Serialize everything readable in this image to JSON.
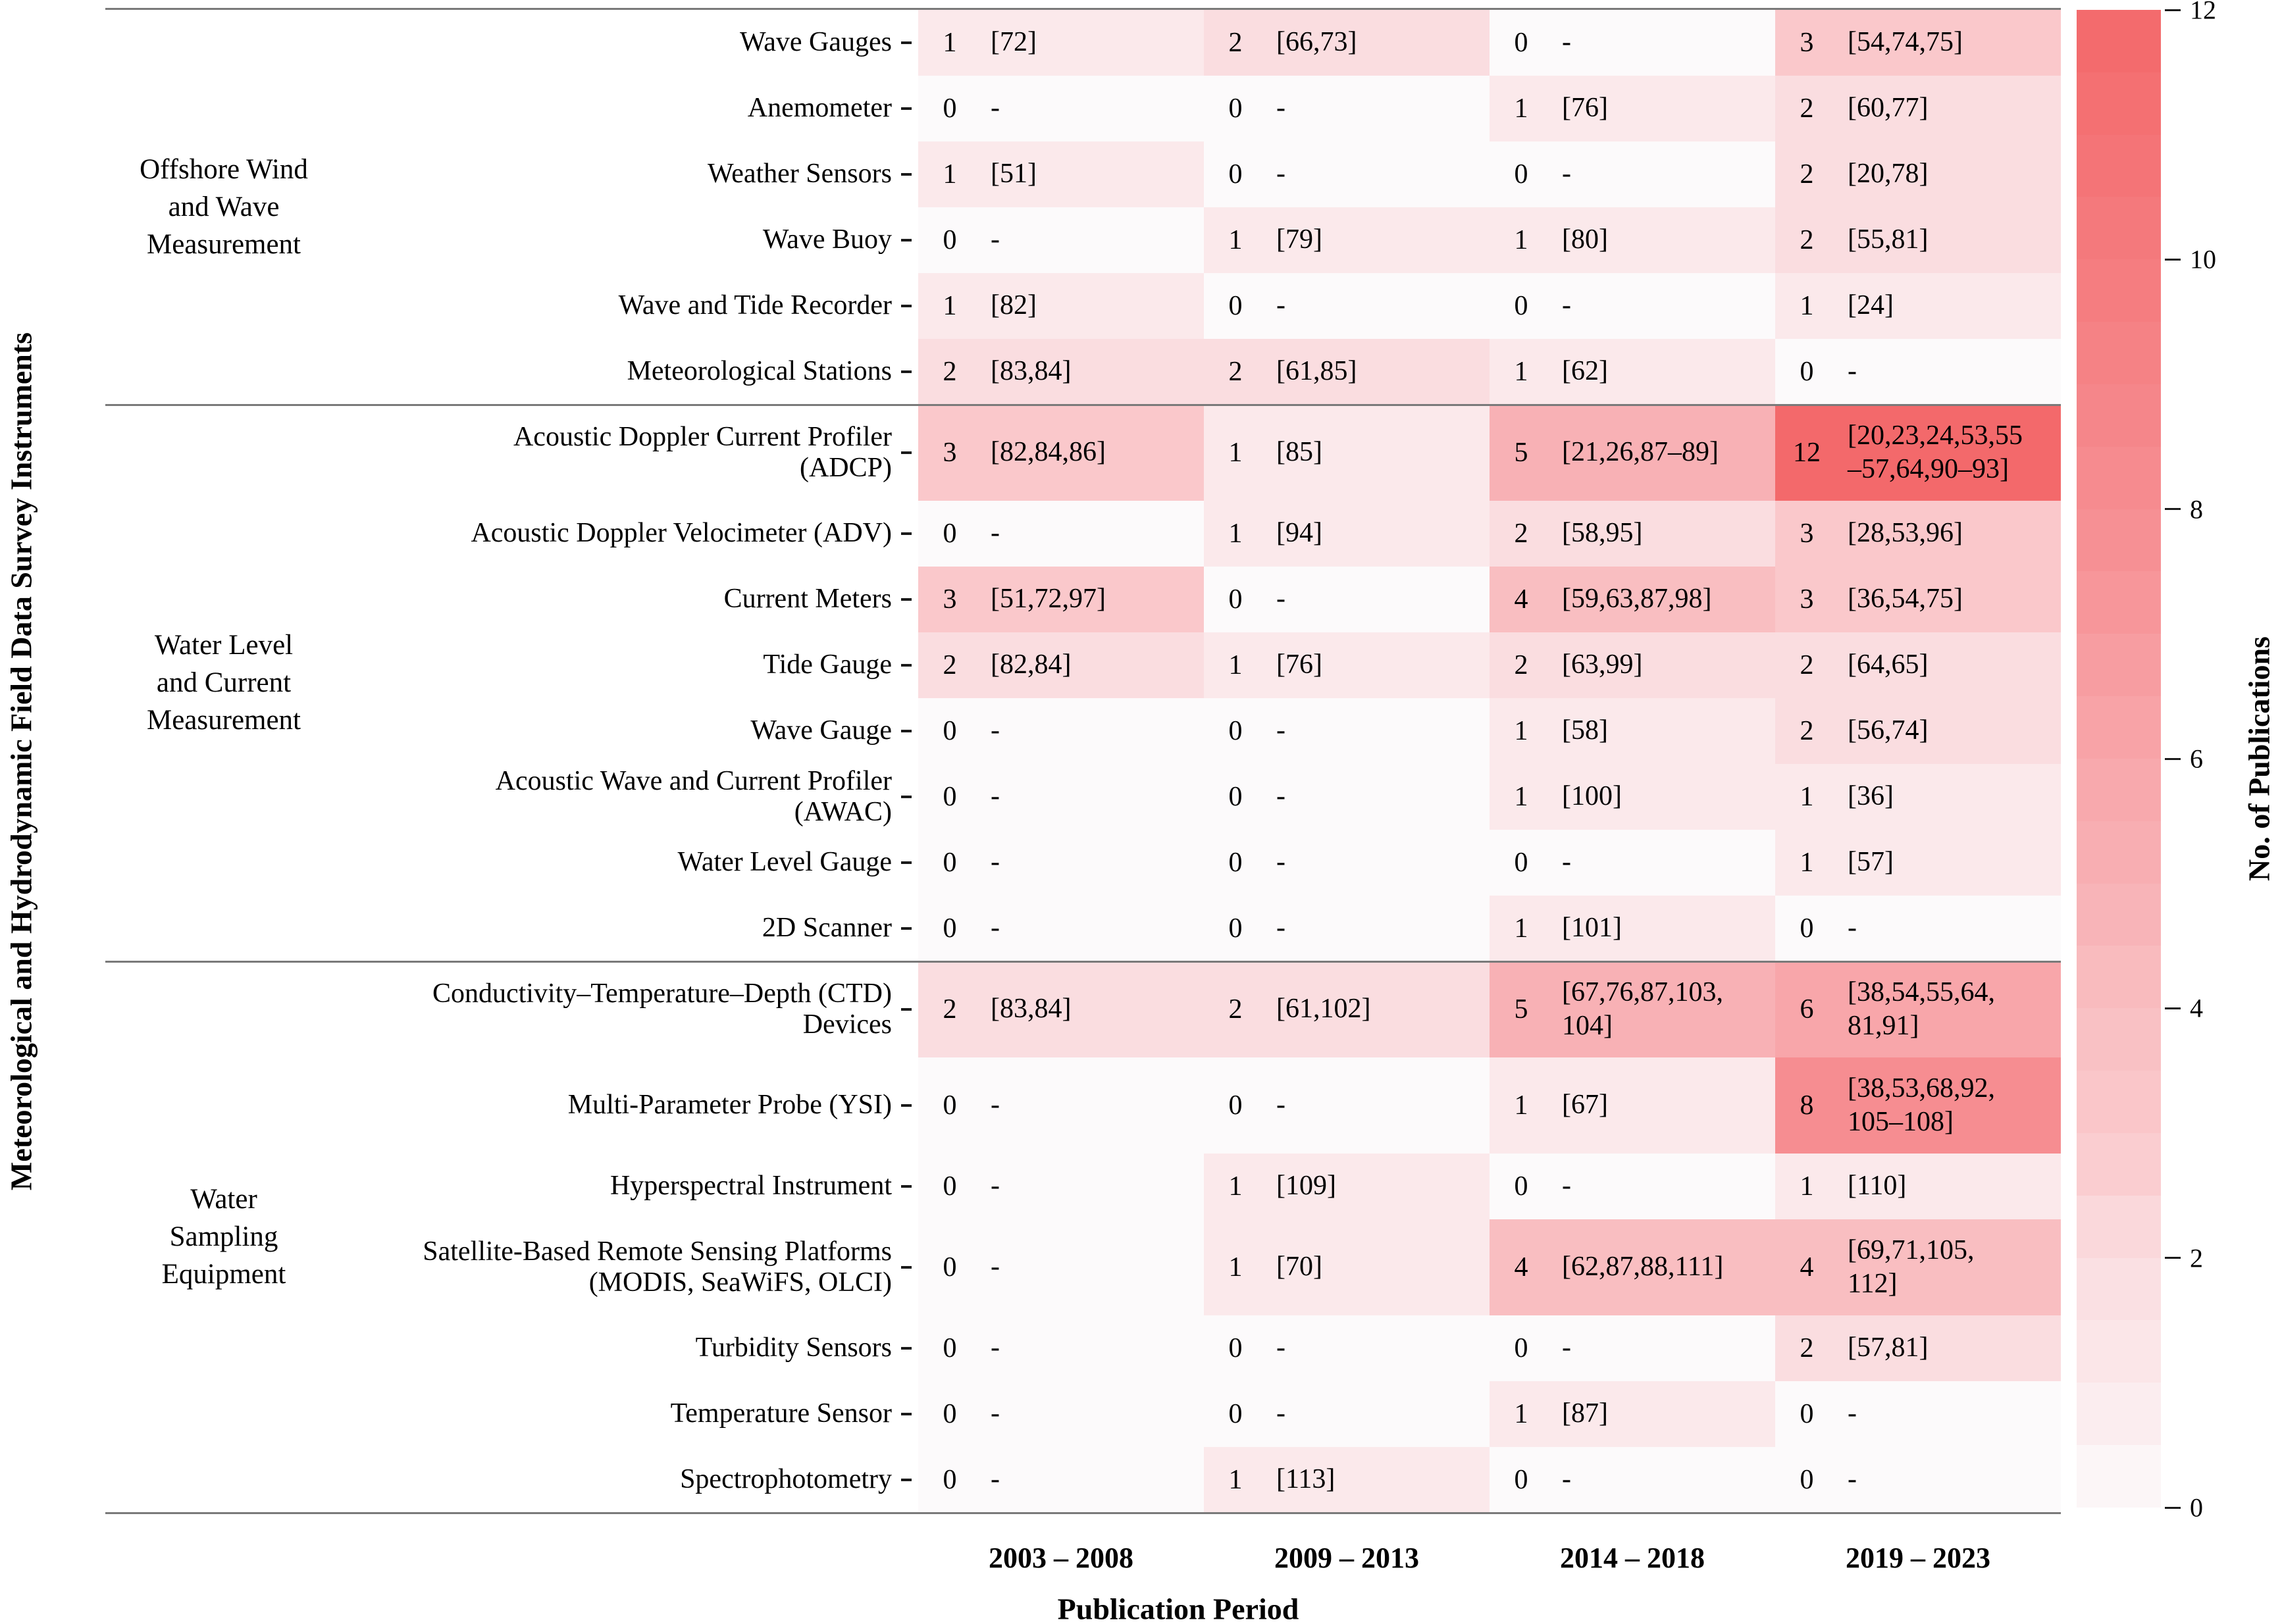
{
  "chart_data": {
    "type": "heatmap",
    "title": "",
    "xlabel": "Publication Period",
    "ylabel": "Meteorological and Hydrodynamic Field Data Survey Instruments",
    "colorbar_label": "No. of Publications",
    "colorbar_ticks": [
      0,
      2,
      4,
      6,
      8,
      10,
      12
    ],
    "vmin": 0,
    "vmax": 12,
    "legend_position": "right",
    "grid": false,
    "value_colors": {
      "0": "#FCFAFB",
      "1": "#FBE9EB",
      "2": "#FADDE0",
      "3": "#FAC8CB",
      "4": "#F9BEC1",
      "5": "#F8B1B5",
      "6": "#F8A6AA",
      "8": "#F68D91",
      "12": "#F3696B"
    },
    "columns": [
      "2003 – 2008",
      "2009 – 2013",
      "2014 – 2018",
      "2019 – 2023"
    ],
    "groups": [
      {
        "label": [
          "Offshore Wind",
          "and Wave",
          "Measurement"
        ],
        "rows": [
          {
            "label": [
              "Wave Gauges"
            ],
            "tall": false,
            "cells": [
              {
                "count": 1,
                "refs": [
                  "[72]"
                ]
              },
              {
                "count": 2,
                "refs": [
                  "[66,73]"
                ]
              },
              {
                "count": 0,
                "refs": [
                  "-"
                ]
              },
              {
                "count": 3,
                "refs": [
                  "[54,74,75]"
                ]
              }
            ]
          },
          {
            "label": [
              "Anemometer"
            ],
            "tall": false,
            "cells": [
              {
                "count": 0,
                "refs": [
                  "-"
                ]
              },
              {
                "count": 0,
                "refs": [
                  "-"
                ]
              },
              {
                "count": 1,
                "refs": [
                  "[76]"
                ]
              },
              {
                "count": 2,
                "refs": [
                  "[60,77]"
                ]
              }
            ]
          },
          {
            "label": [
              "Weather Sensors"
            ],
            "tall": false,
            "cells": [
              {
                "count": 1,
                "refs": [
                  "[51]"
                ]
              },
              {
                "count": 0,
                "refs": [
                  "-"
                ]
              },
              {
                "count": 0,
                "refs": [
                  "-"
                ]
              },
              {
                "count": 2,
                "refs": [
                  "[20,78]"
                ]
              }
            ]
          },
          {
            "label": [
              "Wave Buoy"
            ],
            "tall": false,
            "cells": [
              {
                "count": 0,
                "refs": [
                  "-"
                ]
              },
              {
                "count": 1,
                "refs": [
                  "[79]"
                ]
              },
              {
                "count": 1,
                "refs": [
                  "[80]"
                ]
              },
              {
                "count": 2,
                "refs": [
                  "[55,81]"
                ]
              }
            ]
          },
          {
            "label": [
              "Wave and Tide Recorder"
            ],
            "tall": false,
            "cells": [
              {
                "count": 1,
                "refs": [
                  "[82]"
                ]
              },
              {
                "count": 0,
                "refs": [
                  "-"
                ]
              },
              {
                "count": 0,
                "refs": [
                  "-"
                ]
              },
              {
                "count": 1,
                "refs": [
                  "[24]"
                ]
              }
            ]
          },
          {
            "label": [
              "Meteorological Stations"
            ],
            "tall": false,
            "cells": [
              {
                "count": 2,
                "refs": [
                  "[83,84]"
                ]
              },
              {
                "count": 2,
                "refs": [
                  "[61,85]"
                ]
              },
              {
                "count": 1,
                "refs": [
                  "[62]"
                ]
              },
              {
                "count": 0,
                "refs": [
                  "-"
                ]
              }
            ]
          }
        ]
      },
      {
        "label": [
          "Water Level",
          "and Current",
          "Measurement"
        ],
        "rows": [
          {
            "label": [
              "Acoustic Doppler Current Profiler",
              "(ADCP)"
            ],
            "tall": true,
            "cells": [
              {
                "count": 3,
                "refs": [
                  "[82,84,86]"
                ]
              },
              {
                "count": 1,
                "refs": [
                  "[85]"
                ]
              },
              {
                "count": 5,
                "refs": [
                  "[21,26,87–89]"
                ]
              },
              {
                "count": 12,
                "refs": [
                  "[20,23,24,53,55",
                  "–57,64,90–93]"
                ]
              }
            ]
          },
          {
            "label": [
              "Acoustic Doppler Velocimeter (ADV)"
            ],
            "tall": false,
            "cells": [
              {
                "count": 0,
                "refs": [
                  "-"
                ]
              },
              {
                "count": 1,
                "refs": [
                  "[94]"
                ]
              },
              {
                "count": 2,
                "refs": [
                  "[58,95]"
                ]
              },
              {
                "count": 3,
                "refs": [
                  "[28,53,96]"
                ]
              }
            ]
          },
          {
            "label": [
              "Current Meters"
            ],
            "tall": false,
            "cells": [
              {
                "count": 3,
                "refs": [
                  "[51,72,97]"
                ]
              },
              {
                "count": 0,
                "refs": [
                  "-"
                ]
              },
              {
                "count": 4,
                "refs": [
                  "[59,63,87,98]"
                ]
              },
              {
                "count": 3,
                "refs": [
                  "[36,54,75]"
                ]
              }
            ]
          },
          {
            "label": [
              "Tide Gauge"
            ],
            "tall": false,
            "cells": [
              {
                "count": 2,
                "refs": [
                  "[82,84]"
                ]
              },
              {
                "count": 1,
                "refs": [
                  "[76]"
                ]
              },
              {
                "count": 2,
                "refs": [
                  "[63,99]"
                ]
              },
              {
                "count": 2,
                "refs": [
                  "[64,65]"
                ]
              }
            ]
          },
          {
            "label": [
              "Wave Gauge"
            ],
            "tall": false,
            "cells": [
              {
                "count": 0,
                "refs": [
                  "-"
                ]
              },
              {
                "count": 0,
                "refs": [
                  "-"
                ]
              },
              {
                "count": 1,
                "refs": [
                  "[58]"
                ]
              },
              {
                "count": 2,
                "refs": [
                  "[56,74]"
                ]
              }
            ]
          },
          {
            "label": [
              "Acoustic Wave and Current Profiler",
              "(AWAC)"
            ],
            "tall": false,
            "cells": [
              {
                "count": 0,
                "refs": [
                  "-"
                ]
              },
              {
                "count": 0,
                "refs": [
                  "-"
                ]
              },
              {
                "count": 1,
                "refs": [
                  "[100]"
                ]
              },
              {
                "count": 1,
                "refs": [
                  "[36]"
                ]
              }
            ]
          },
          {
            "label": [
              "Water Level Gauge"
            ],
            "tall": false,
            "cells": [
              {
                "count": 0,
                "refs": [
                  "-"
                ]
              },
              {
                "count": 0,
                "refs": [
                  "-"
                ]
              },
              {
                "count": 0,
                "refs": [
                  "-"
                ]
              },
              {
                "count": 1,
                "refs": [
                  "[57]"
                ]
              }
            ]
          },
          {
            "label": [
              "2D Scanner"
            ],
            "tall": false,
            "cells": [
              {
                "count": 0,
                "refs": [
                  "-"
                ]
              },
              {
                "count": 0,
                "refs": [
                  "-"
                ]
              },
              {
                "count": 1,
                "refs": [
                  "[101]"
                ]
              },
              {
                "count": 0,
                "refs": [
                  "-"
                ]
              }
            ]
          }
        ]
      },
      {
        "label": [
          "Water",
          "Sampling",
          "Equipment"
        ],
        "rows": [
          {
            "label": [
              "Conductivity–Temperature–Depth (CTD)",
              "Devices"
            ],
            "tall": true,
            "cells": [
              {
                "count": 2,
                "refs": [
                  "[83,84]"
                ]
              },
              {
                "count": 2,
                "refs": [
                  "[61,102]"
                ]
              },
              {
                "count": 5,
                "refs": [
                  "[67,76,87,103,",
                  "104]"
                ]
              },
              {
                "count": 6,
                "refs": [
                  "[38,54,55,64,",
                  "81,91]"
                ]
              }
            ]
          },
          {
            "label": [
              "Multi-Parameter Probe (YSI)"
            ],
            "tall": true,
            "cells": [
              {
                "count": 0,
                "refs": [
                  "-"
                ]
              },
              {
                "count": 0,
                "refs": [
                  "-"
                ]
              },
              {
                "count": 1,
                "refs": [
                  "[67]"
                ]
              },
              {
                "count": 8,
                "refs": [
                  "[38,53,68,92,",
                  "105–108]"
                ]
              }
            ]
          },
          {
            "label": [
              "Hyperspectral Instrument"
            ],
            "tall": false,
            "cells": [
              {
                "count": 0,
                "refs": [
                  "-"
                ]
              },
              {
                "count": 1,
                "refs": [
                  "[109]"
                ]
              },
              {
                "count": 0,
                "refs": [
                  "-"
                ]
              },
              {
                "count": 1,
                "refs": [
                  "[110]"
                ]
              }
            ]
          },
          {
            "label": [
              "Satellite-Based Remote Sensing Platforms",
              "(MODIS, SeaWiFS, OLCI)"
            ],
            "tall": true,
            "cells": [
              {
                "count": 0,
                "refs": [
                  "-"
                ]
              },
              {
                "count": 1,
                "refs": [
                  "[70]"
                ]
              },
              {
                "count": 4,
                "refs": [
                  "[62,87,88,111]"
                ]
              },
              {
                "count": 4,
                "refs": [
                  "[69,71,105,",
                  "112]"
                ]
              }
            ]
          },
          {
            "label": [
              "Turbidity Sensors"
            ],
            "tall": false,
            "cells": [
              {
                "count": 0,
                "refs": [
                  "-"
                ]
              },
              {
                "count": 0,
                "refs": [
                  "-"
                ]
              },
              {
                "count": 0,
                "refs": [
                  "-"
                ]
              },
              {
                "count": 2,
                "refs": [
                  "[57,81]"
                ]
              }
            ]
          },
          {
            "label": [
              "Temperature Sensor"
            ],
            "tall": false,
            "cells": [
              {
                "count": 0,
                "refs": [
                  "-"
                ]
              },
              {
                "count": 0,
                "refs": [
                  "-"
                ]
              },
              {
                "count": 1,
                "refs": [
                  "[87]"
                ]
              },
              {
                "count": 0,
                "refs": [
                  "-"
                ]
              }
            ]
          },
          {
            "label": [
              "Spectrophotometry"
            ],
            "tall": false,
            "cells": [
              {
                "count": 0,
                "refs": [
                  "-"
                ]
              },
              {
                "count": 1,
                "refs": [
                  "[113]"
                ]
              },
              {
                "count": 0,
                "refs": [
                  "-"
                ]
              },
              {
                "count": 0,
                "refs": [
                  "-"
                ]
              }
            ]
          }
        ]
      }
    ]
  }
}
